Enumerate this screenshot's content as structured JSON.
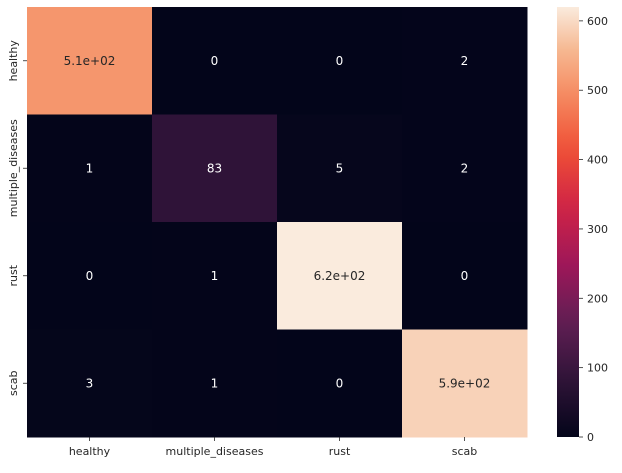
{
  "chart_data": {
    "type": "heatmap",
    "rows": [
      "healthy",
      "multiple_diseases",
      "rust",
      "scab"
    ],
    "columns": [
      "healthy",
      "multiple_diseases",
      "rust",
      "scab"
    ],
    "values": [
      [
        510,
        0,
        0,
        2
      ],
      [
        1,
        83,
        5,
        2
      ],
      [
        0,
        1,
        620,
        0
      ],
      [
        3,
        1,
        0,
        590
      ]
    ],
    "annotations": [
      [
        "5.1e+02",
        "0",
        "0",
        "2"
      ],
      [
        "1",
        "83",
        "5",
        "2"
      ],
      [
        "0",
        "1",
        "6.2e+02",
        "0"
      ],
      [
        "3",
        "1",
        "0",
        "5.9e+02"
      ]
    ],
    "colormap": "rocket",
    "vmin": 0,
    "vmax": 620,
    "colorbar_ticks": [
      0,
      100,
      200,
      300,
      400,
      500,
      600
    ],
    "title": "",
    "xlabel": "",
    "ylabel": "",
    "grid": false
  }
}
